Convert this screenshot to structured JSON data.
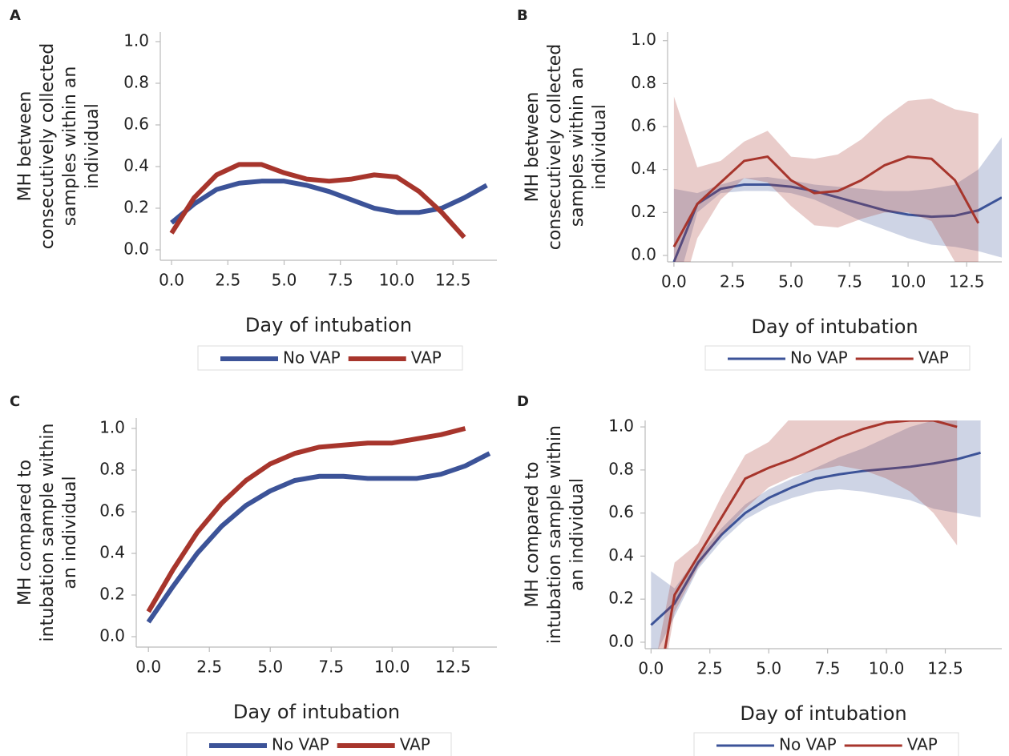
{
  "chart_data": [
    {
      "type": "line",
      "panel": "A",
      "ylabel": [
        "MH between",
        "consecutively collected",
        "samples within an",
        "individual"
      ],
      "xlabel": "Day of intubation",
      "xlim": [
        -0.5,
        14.45
      ],
      "ylim": [
        -0.05,
        1.046
      ],
      "xticks": [
        {
          "value": 0,
          "label": "0.0"
        },
        2.5,
        {
          "value": 5,
          "label": "5.0"
        },
        7.5,
        {
          "value": 10,
          "label": "10.0"
        },
        12.5
      ],
      "yticks": [
        {
          "value": 0,
          "label": "0.0"
        },
        0.2,
        0.4,
        0.6,
        0.8,
        {
          "value": 1,
          "label": "1.0"
        }
      ],
      "line_width": 6,
      "series": [
        {
          "name": "No VAP",
          "color": "#3c5398",
          "x": [
            0,
            1,
            2,
            3,
            4,
            5,
            6,
            7,
            8,
            9,
            10,
            11,
            12,
            13,
            14
          ],
          "values": [
            0.13,
            0.22,
            0.29,
            0.32,
            0.33,
            0.33,
            0.31,
            0.28,
            0.24,
            0.2,
            0.18,
            0.18,
            0.2,
            0.25,
            0.31
          ]
        },
        {
          "name": "VAP",
          "color": "#a7352c",
          "x": [
            0,
            1,
            2,
            3,
            4,
            5,
            6,
            7,
            8,
            9,
            10,
            11,
            12,
            13
          ],
          "values": [
            0.08,
            0.25,
            0.36,
            0.41,
            0.41,
            0.37,
            0.34,
            0.33,
            0.34,
            0.36,
            0.35,
            0.28,
            0.18,
            0.06
          ]
        }
      ]
    },
    {
      "type": "line",
      "panel": "B",
      "ylabel": [
        "MH between",
        "consecutively collected",
        "samples within an",
        "individual"
      ],
      "xlabel": "Day of intubation",
      "xlim": [
        -0.27,
        14
      ],
      "ylim": [
        -0.03,
        1.04
      ],
      "xticks": [
        {
          "value": 0,
          "label": "0.0"
        },
        2.5,
        {
          "value": 5,
          "label": "5.0"
        },
        7.5,
        {
          "value": 10,
          "label": "10.0"
        },
        12.5
      ],
      "yticks": [
        {
          "value": 0,
          "label": "0.0"
        },
        0.2,
        0.4,
        0.6,
        0.8,
        {
          "value": 1,
          "label": "1.0"
        }
      ],
      "line_width": 3,
      "series": [
        {
          "name": "No VAP",
          "color": "#3c5398",
          "x": [
            0,
            1,
            2,
            3,
            4,
            5,
            6,
            7,
            8,
            9,
            10,
            11,
            12,
            13,
            14
          ],
          "values": [
            -0.03,
            0.24,
            0.31,
            0.33,
            0.33,
            0.32,
            0.3,
            0.27,
            0.24,
            0.21,
            0.19,
            0.18,
            0.185,
            0.21,
            0.27
          ],
          "lower": [
            -0.2,
            0.2,
            0.29,
            0.3,
            0.3,
            0.29,
            0.26,
            0.21,
            0.16,
            0.12,
            0.08,
            0.05,
            0.04,
            0.02,
            -0.01
          ],
          "upper": [
            0.31,
            0.29,
            0.33,
            0.36,
            0.365,
            0.35,
            0.33,
            0.32,
            0.31,
            0.3,
            0.3,
            0.31,
            0.33,
            0.4,
            0.55
          ]
        },
        {
          "name": "VAP",
          "color": "#a7352c",
          "x": [
            0,
            1,
            2,
            3,
            4,
            5,
            6,
            7,
            8,
            9,
            10,
            11,
            12,
            13
          ],
          "values": [
            0.04,
            0.24,
            0.34,
            0.44,
            0.46,
            0.35,
            0.29,
            0.3,
            0.35,
            0.42,
            0.46,
            0.45,
            0.35,
            0.15
          ],
          "lower": [
            -0.3,
            0.08,
            0.26,
            0.36,
            0.34,
            0.23,
            0.14,
            0.13,
            0.17,
            0.2,
            0.2,
            0.16,
            -0.03,
            -0.1
          ],
          "upper": [
            0.74,
            0.41,
            0.44,
            0.53,
            0.58,
            0.46,
            0.45,
            0.47,
            0.54,
            0.64,
            0.72,
            0.73,
            0.68,
            0.66
          ]
        }
      ]
    },
    {
      "type": "line",
      "panel": "C",
      "ylabel": [
        "MH compared to",
        "intubation sample within",
        "an individual"
      ],
      "xlabel": "Day of intubation",
      "xlim": [
        -0.5,
        14.3
      ],
      "ylim": [
        -0.05,
        1.05
      ],
      "xticks": [
        {
          "value": 0,
          "label": "0.0"
        },
        2.5,
        {
          "value": 5,
          "label": "5.0"
        },
        7.5,
        {
          "value": 10,
          "label": "10.0"
        },
        12.5
      ],
      "yticks": [
        {
          "value": 0,
          "label": "0.0"
        },
        0.2,
        0.4,
        0.6,
        0.8,
        {
          "value": 1,
          "label": "1.0"
        }
      ],
      "line_width": 6,
      "series": [
        {
          "name": "No VAP",
          "color": "#3c5398",
          "x": [
            0,
            1,
            2,
            3,
            4,
            5,
            6,
            7,
            8,
            9,
            10,
            11,
            12,
            13,
            14
          ],
          "values": [
            0.07,
            0.24,
            0.4,
            0.53,
            0.63,
            0.7,
            0.75,
            0.77,
            0.77,
            0.76,
            0.76,
            0.76,
            0.78,
            0.82,
            0.88
          ]
        },
        {
          "name": "VAP",
          "color": "#a7352c",
          "x": [
            0,
            1,
            2,
            3,
            4,
            5,
            6,
            7,
            8,
            9,
            10,
            11,
            12,
            13
          ],
          "values": [
            0.12,
            0.32,
            0.5,
            0.64,
            0.75,
            0.83,
            0.88,
            0.91,
            0.92,
            0.93,
            0.93,
            0.95,
            0.97,
            1.0
          ]
        }
      ]
    },
    {
      "type": "line",
      "panel": "D",
      "ylabel": [
        "MH compared to",
        "intubation sample within",
        "an individual"
      ],
      "xlabel": "Day of intubation",
      "xlim": [
        -0.25,
        14.9
      ],
      "ylim": [
        -0.03,
        1.03
      ],
      "xticks": [
        {
          "value": 0,
          "label": "0.0"
        },
        2.5,
        {
          "value": 5,
          "label": "5.0"
        },
        7.5,
        {
          "value": 10,
          "label": "10.0"
        },
        12.5
      ],
      "yticks": [
        {
          "value": 0,
          "label": "0.0"
        },
        0.2,
        0.4,
        0.6,
        0.8,
        {
          "value": 1,
          "label": "1.0"
        }
      ],
      "line_width": 3,
      "series": [
        {
          "name": "No VAP",
          "color": "#3c5398",
          "x": [
            0,
            1,
            2,
            3,
            4,
            5,
            6,
            7,
            8,
            9,
            10,
            11,
            12,
            13,
            14
          ],
          "values": [
            0.08,
            0.18,
            0.37,
            0.5,
            0.6,
            0.67,
            0.72,
            0.76,
            0.78,
            0.795,
            0.805,
            0.815,
            0.83,
            0.85,
            0.88
          ],
          "lower": [
            -0.1,
            0.12,
            0.34,
            0.47,
            0.57,
            0.63,
            0.67,
            0.7,
            0.71,
            0.7,
            0.68,
            0.66,
            0.62,
            0.6,
            0.58
          ],
          "upper": [
            0.33,
            0.25,
            0.4,
            0.53,
            0.64,
            0.71,
            0.76,
            0.81,
            0.86,
            0.9,
            0.95,
            1.0,
            1.03,
            1.03,
            1.03
          ]
        },
        {
          "name": "VAP",
          "color": "#a7352c",
          "x": [
            0,
            1,
            2,
            3,
            4,
            5,
            6,
            7,
            8,
            9,
            10,
            11,
            12,
            13
          ],
          "values": [
            -0.4,
            0.22,
            0.4,
            0.58,
            0.76,
            0.81,
            0.85,
            0.9,
            0.95,
            0.99,
            1.02,
            1.03,
            1.03,
            1.0
          ],
          "lower": [
            -0.5,
            0.14,
            0.35,
            0.5,
            0.62,
            0.72,
            0.77,
            0.8,
            0.82,
            0.8,
            0.76,
            0.7,
            0.6,
            0.45
          ],
          "upper": [
            -0.2,
            0.37,
            0.46,
            0.68,
            0.87,
            0.93,
            1.05,
            1.1,
            1.1,
            1.1,
            1.1,
            1.1,
            1.1,
            1.1
          ]
        }
      ]
    }
  ]
}
